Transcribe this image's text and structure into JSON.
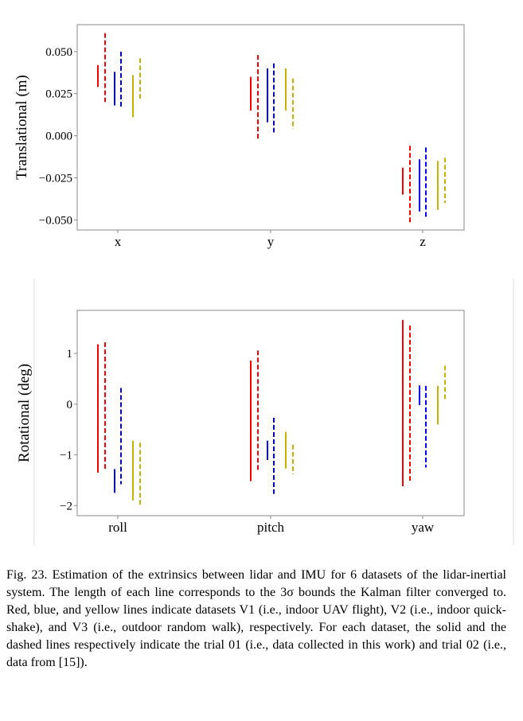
{
  "caption": {
    "text": "Fig. 23.  Estimation of the extrinsics between lidar and IMU for 6 datasets of the lidar-inertial system. The length of each line corresponds to the 3σ bounds the Kalman filter converged to. Red, blue, and yellow lines indicate datasets V1 (i.e., indoor UAV flight), V2 (i.e., indoor quick-shake), and V3 (i.e., outdoor random walk), respectively. For each dataset, the solid and the dashed lines respectively indicate the trial 01 (i.e., data collected in this work) and trial 02 (i.e., data from [15])."
  },
  "colors": {
    "V1": "#ff0000",
    "V2": "#0000ff",
    "V3": "#c8b400"
  },
  "chart_data": [
    {
      "type": "errorbar-intervals",
      "ylabel": "Translational (m)",
      "xlabel": "",
      "categories": [
        "x",
        "y",
        "z"
      ],
      "ylim": [
        -0.056,
        0.066
      ],
      "yticks": [
        0.05,
        0.025,
        0.0,
        -0.025,
        -0.05
      ],
      "ytick_labels": [
        "0.050",
        "0.025",
        "0.000",
        "−0.025",
        "−0.050"
      ],
      "series": [
        {
          "name": "V1 trial 01",
          "dataset": "V1",
          "style": "solid",
          "intervals": [
            [
              0.029,
              0.042
            ],
            [
              0.015,
              0.035
            ],
            [
              -0.035,
              -0.019
            ]
          ]
        },
        {
          "name": "V1 trial 02",
          "dataset": "V1",
          "style": "dashed",
          "intervals": [
            [
              0.02,
              0.061
            ],
            [
              -0.002,
              0.048
            ],
            [
              -0.052,
              -0.006
            ]
          ]
        },
        {
          "name": "V2 trial 01",
          "dataset": "V2",
          "style": "solid",
          "intervals": [
            [
              0.018,
              0.038
            ],
            [
              0.008,
              0.04
            ],
            [
              -0.045,
              -0.014
            ]
          ]
        },
        {
          "name": "V2 trial 02",
          "dataset": "V2",
          "style": "dashed",
          "intervals": [
            [
              0.016,
              0.05
            ],
            [
              0.002,
              0.043
            ],
            [
              -0.049,
              -0.007
            ]
          ]
        },
        {
          "name": "V3 trial 01",
          "dataset": "V3",
          "style": "solid",
          "intervals": [
            [
              0.011,
              0.036
            ],
            [
              0.015,
              0.04
            ],
            [
              -0.044,
              -0.015
            ]
          ]
        },
        {
          "name": "V3 trial 02",
          "dataset": "V3",
          "style": "dashed",
          "intervals": [
            [
              0.022,
              0.046
            ],
            [
              0.004,
              0.034
            ],
            [
              -0.04,
              -0.013
            ]
          ]
        }
      ]
    },
    {
      "type": "errorbar-intervals",
      "ylabel": "Rotational (deg)",
      "xlabel": "",
      "categories": [
        "roll",
        "pitch",
        "yaw"
      ],
      "ylim": [
        -2.2,
        1.85
      ],
      "yticks": [
        1,
        0,
        -1,
        -2
      ],
      "ytick_labels": [
        "1",
        "0",
        "−1",
        "−2"
      ],
      "series": [
        {
          "name": "V1 trial 01",
          "dataset": "V1",
          "style": "solid",
          "intervals": [
            [
              -1.35,
              1.18
            ],
            [
              -1.52,
              0.86
            ],
            [
              -1.62,
              1.66
            ]
          ]
        },
        {
          "name": "V1 trial 02",
          "dataset": "V1",
          "style": "dashed",
          "intervals": [
            [
              -1.3,
              1.22
            ],
            [
              -1.32,
              1.06
            ],
            [
              -1.55,
              1.55
            ]
          ]
        },
        {
          "name": "V2 trial 01",
          "dataset": "V2",
          "style": "solid",
          "intervals": [
            [
              -1.75,
              -1.28
            ],
            [
              -1.1,
              -0.72
            ],
            [
              -0.02,
              0.37
            ]
          ]
        },
        {
          "name": "V2 trial 02",
          "dataset": "V2",
          "style": "dashed",
          "intervals": [
            [
              -1.58,
              0.32
            ],
            [
              -1.77,
              -0.27
            ],
            [
              -1.25,
              0.36
            ]
          ]
        },
        {
          "name": "V3 trial 01",
          "dataset": "V3",
          "style": "solid",
          "intervals": [
            [
              -1.9,
              -0.72
            ],
            [
              -1.27,
              -0.55
            ],
            [
              -0.4,
              0.36
            ]
          ]
        },
        {
          "name": "V3 trial 02",
          "dataset": "V3",
          "style": "dashed",
          "intervals": [
            [
              -2.02,
              -0.76
            ],
            [
              -1.38,
              -0.8
            ],
            [
              0.1,
              0.76
            ]
          ]
        }
      ]
    }
  ]
}
